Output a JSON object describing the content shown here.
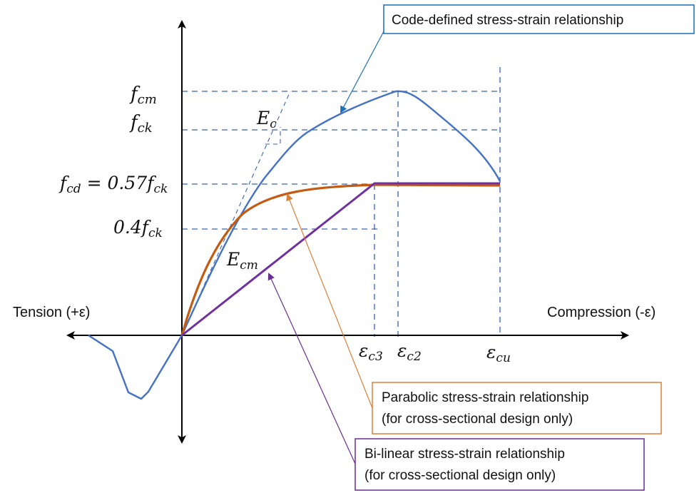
{
  "axes": {
    "tension_label": "Tension (+ε)",
    "compression_label": "Compression (-ε)"
  },
  "stress_labels": {
    "fcm": {
      "base": "f",
      "sub": "cm"
    },
    "fck": {
      "base": "f",
      "sub": "ck"
    },
    "fcd": {
      "base": "f",
      "sub": "cd",
      "eq": " = 0.57",
      "base2": "f",
      "sub2": "ck"
    },
    "fck04": {
      "coef": "0.4",
      "base": "f",
      "sub": "ck"
    }
  },
  "strain_labels": {
    "ec3": {
      "base": "ε",
      "sub": "c3"
    },
    "ec2": {
      "base": "ε",
      "sub": "c2"
    },
    "ecu": {
      "base": "ε",
      "sub": "cu"
    }
  },
  "modulus_labels": {
    "ec": {
      "base": "E",
      "sub": "c"
    },
    "ecm": {
      "base": "E",
      "sub": "cm"
    }
  },
  "callouts": {
    "code": {
      "line1": "Code-defined stress-strain relationship",
      "color": "#1a6fb5"
    },
    "parabolic": {
      "line1": "Parabolic stress-strain relationship",
      "line2": "(for cross-sectional design only)",
      "color": "#d9803a"
    },
    "bilinear": {
      "line1": "Bi-linear stress-strain relationship",
      "line2": "(for cross-sectional design only)",
      "color": "#6a2d91"
    }
  },
  "colors": {
    "code_curve": "#4472c4",
    "parabolic_curve": "#c55a11",
    "bilinear_curve": "#7030a0",
    "guides": "#3a62b0",
    "axes": "#000000"
  }
}
